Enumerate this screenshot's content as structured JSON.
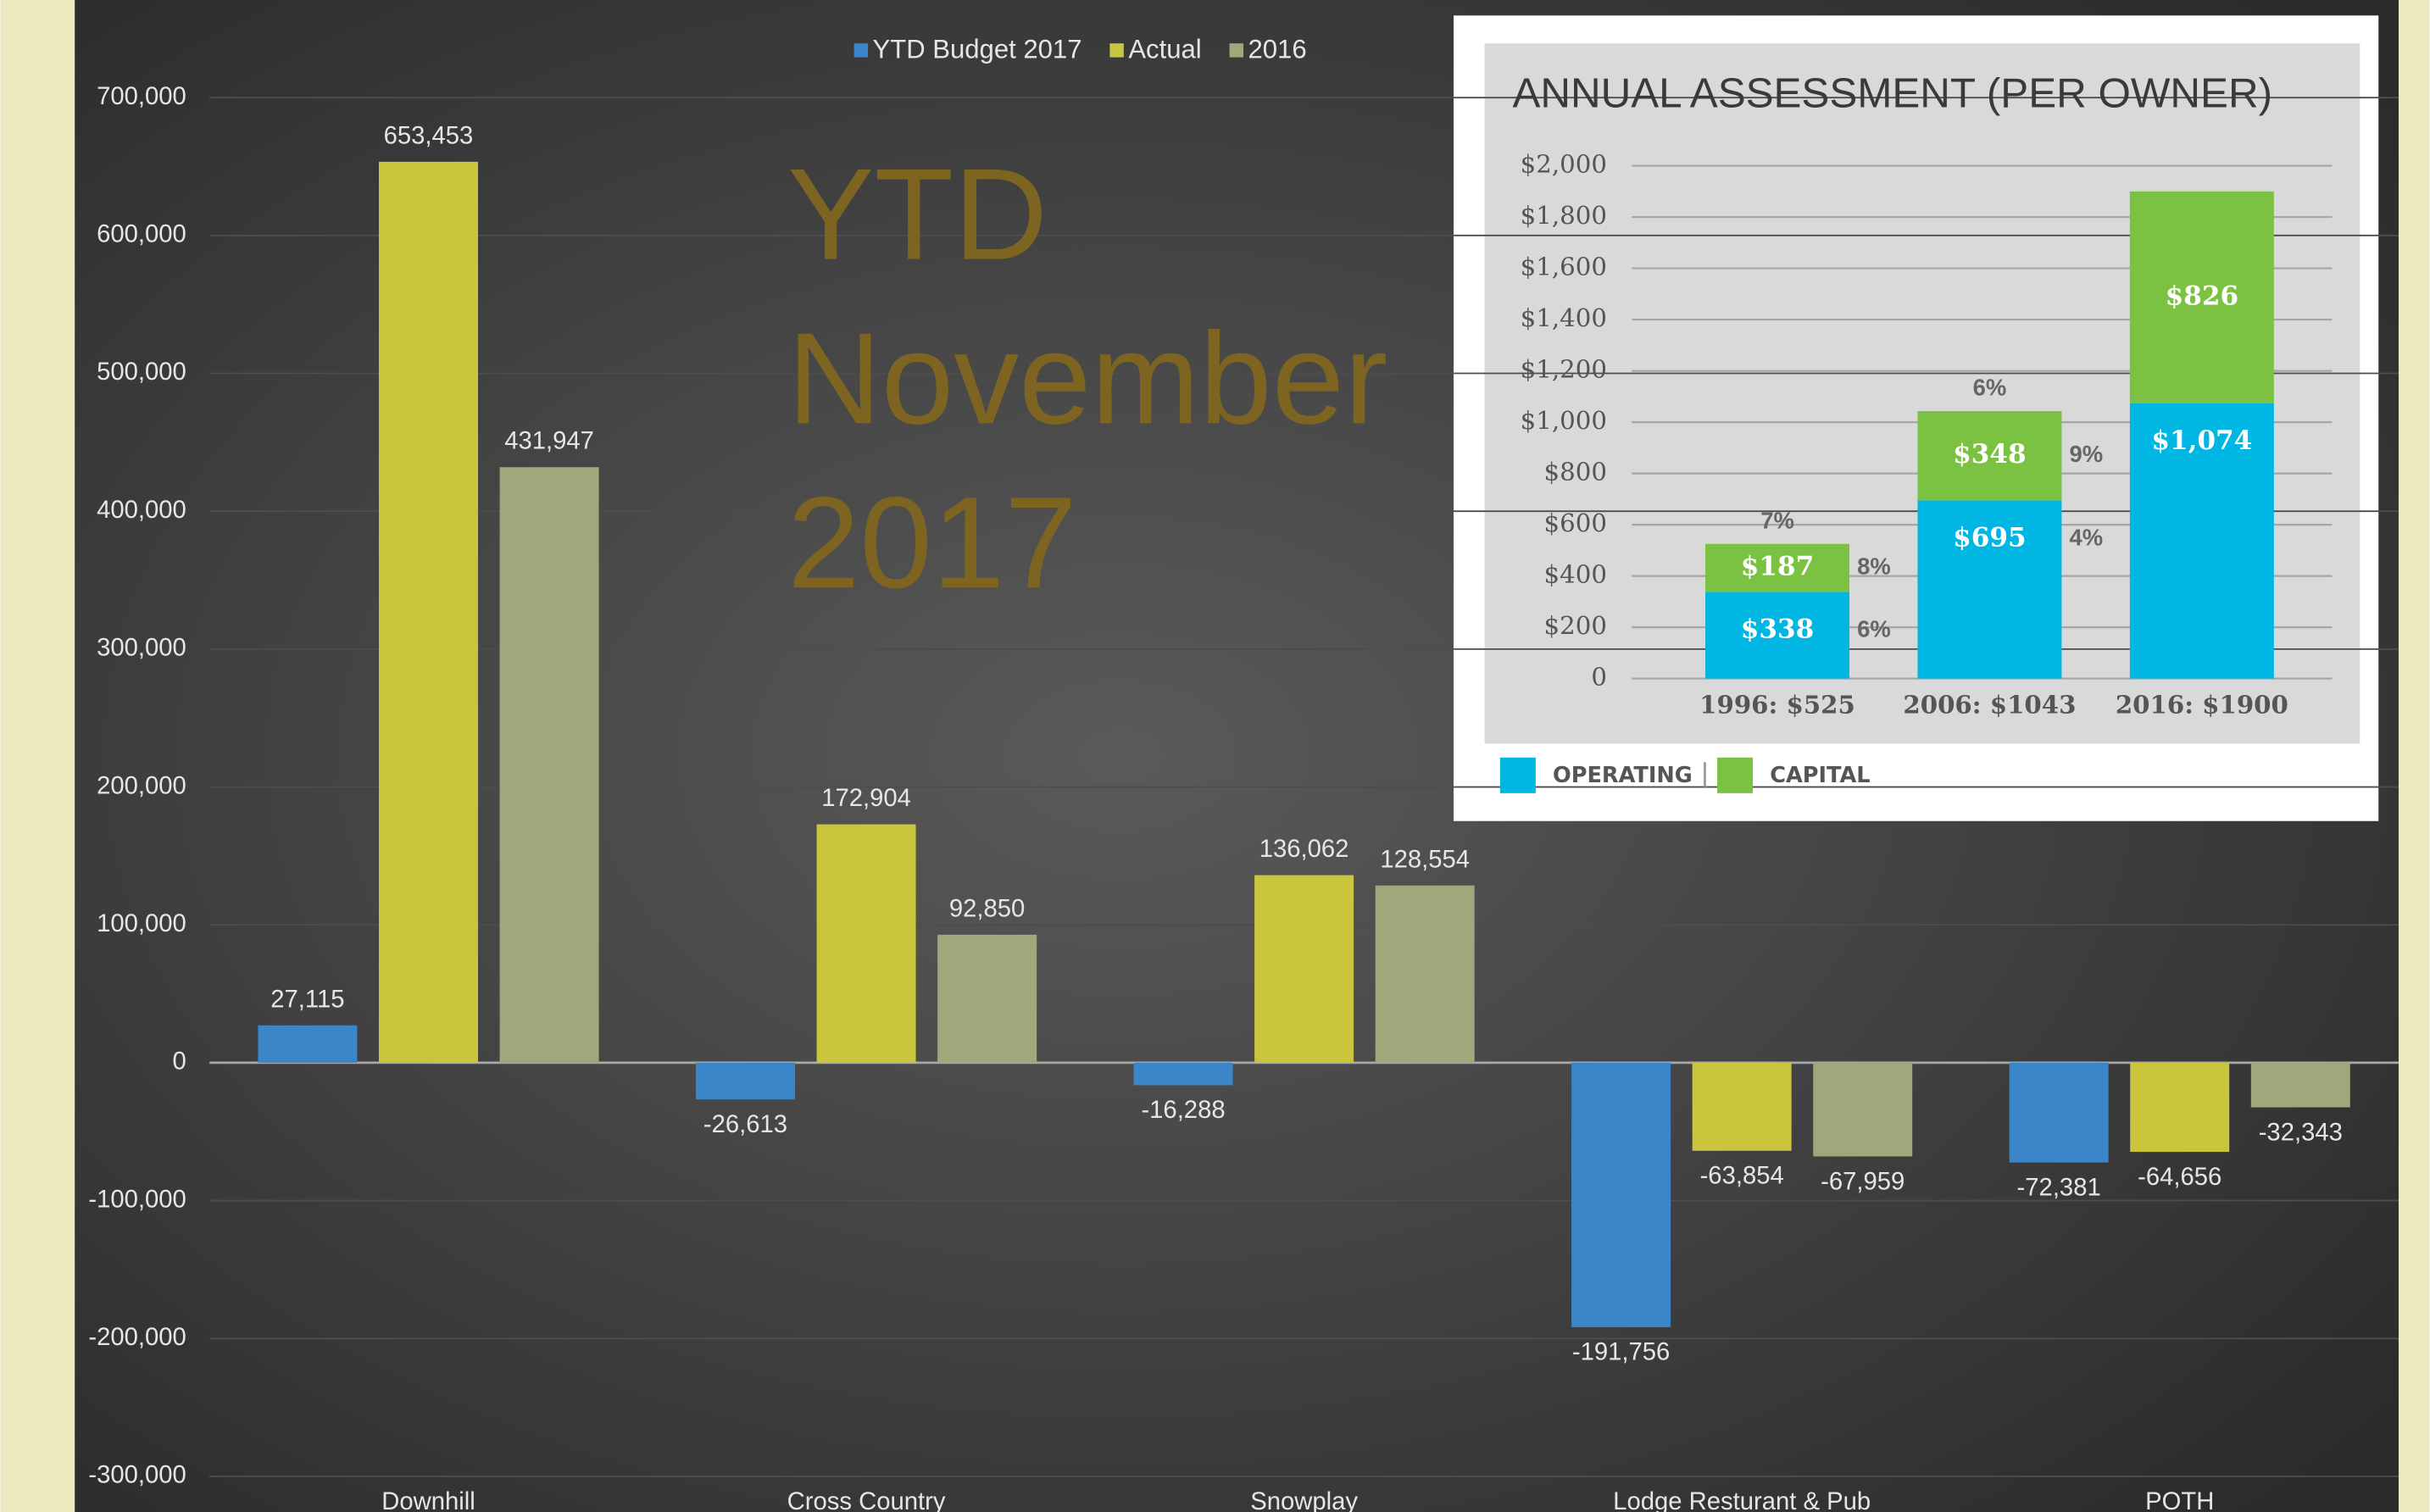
{
  "chart_data": [
    {
      "type": "bar",
      "annotation": [
        "YTD",
        "November",
        "2017"
      ],
      "categories": [
        "Downhill",
        "Cross Country",
        "Snowplay",
        "Lodge Resturant & Pub",
        "POTH"
      ],
      "series": [
        {
          "name": "YTD Budget 2017",
          "color": "#3a86c8",
          "values": [
            27115,
            -26613,
            -16288,
            -191756,
            -72381
          ],
          "value_labels": [
            "27,115",
            "-26,613",
            "-16,288",
            "-191,756",
            "-72,381"
          ]
        },
        {
          "name": "Actual",
          "color": "#c9c53c",
          "values": [
            653453,
            172904,
            136062,
            -63854,
            -64656
          ],
          "value_labels": [
            "653,453",
            "172,904",
            "136,062",
            "-63,854",
            "-64,656"
          ]
        },
        {
          "name": "2016",
          "color": "#a0a77a",
          "values": [
            431947,
            92850,
            128554,
            -67959,
            -32343
          ],
          "value_labels": [
            "431,947",
            "92,850",
            "128,554",
            "-67,959",
            "-32,343"
          ]
        }
      ],
      "ylim": [
        -300000,
        700000
      ],
      "yticks": [
        {
          "value": -300000,
          "label": "-300,000"
        },
        {
          "value": -200000,
          "label": "-200,000"
        },
        {
          "value": -100000,
          "label": "-100,000"
        },
        0,
        {
          "value": 100000,
          "label": "100,000"
        },
        {
          "value": 200000,
          "label": "200,000"
        },
        {
          "value": 300000,
          "label": "300,000"
        },
        {
          "value": 400000,
          "label": "400,000"
        },
        {
          "value": 500000,
          "label": "500,000"
        },
        {
          "value": 600000,
          "label": "600,000"
        },
        {
          "value": 700000,
          "label": "700,000"
        }
      ],
      "grid": true,
      "legend": "top"
    },
    {
      "type": "stacked_bar",
      "title": "ANNUAL ASSESSMENT (PER OWNER)",
      "categories": [
        "1996: $525",
        "2006: $1043",
        "2016: $1900"
      ],
      "total_change_labels": [
        "7%",
        "6%",
        null
      ],
      "series": [
        {
          "name": "OPERATING",
          "color": "#00b6e3",
          "values": [
            338,
            695,
            1074
          ],
          "value_labels": [
            "$338",
            "$695",
            "$1,074"
          ],
          "change_labels": [
            "6%",
            "4%",
            null
          ]
        },
        {
          "name": "CAPITAL",
          "color": "#7cc242",
          "values": [
            187,
            348,
            826
          ],
          "value_labels": [
            "$187",
            "$348",
            "$826"
          ],
          "change_labels": [
            "8%",
            "9%",
            null
          ]
        }
      ],
      "ylim": [
        0,
        2000
      ],
      "yticks": [
        0,
        {
          "value": 200,
          "label": "$200"
        },
        {
          "value": 400,
          "label": "$400"
        },
        {
          "value": 600,
          "label": "$600"
        },
        {
          "value": 800,
          "label": "$800"
        },
        {
          "value": 1000,
          "label": "$1,000"
        },
        {
          "value": 1200,
          "label": "$1,200"
        },
        {
          "value": 1400,
          "label": "$1,400"
        },
        {
          "value": 1600,
          "label": "$1,600"
        },
        {
          "value": 1800,
          "label": "$1,800"
        },
        {
          "value": 2000,
          "label": "$2,000"
        }
      ],
      "grid": true,
      "legend": "bottom-left"
    }
  ]
}
